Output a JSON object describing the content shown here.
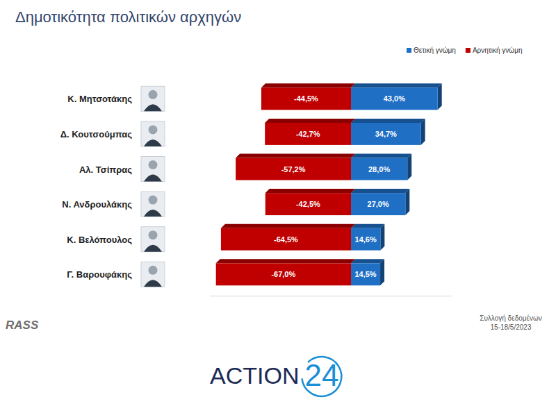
{
  "chart_data": {
    "type": "bar",
    "title": "Δημοτικότητα πολιτικών αρχηγών",
    "orientation": "horizontal",
    "categories": [
      "Κ. Μητσοτάκης",
      "Δ. Κουτσούμπας",
      "Αλ. Τσίπρας",
      "Ν. Ανδρουλάκης",
      "Κ. Βελόπουλος",
      "Γ. Βαρουφάκης"
    ],
    "series": [
      {
        "name": "Θετική γνώμη",
        "color": "#1f6fc5",
        "values": [
          43.0,
          34.7,
          28.0,
          27.0,
          14.6,
          14.5
        ],
        "value_labels": [
          "43,0%",
          "34,7%",
          "28,0%",
          "27,0%",
          "14,6%",
          "14,5%"
        ]
      },
      {
        "name": "Αρνητική γνώμη",
        "color": "#c00000",
        "values": [
          -44.5,
          -42.7,
          -57.2,
          -42.5,
          -64.5,
          -67.0
        ],
        "value_labels": [
          "-44,5%",
          "-42,7%",
          "-57,2%",
          "-42,5%",
          "-64,5%",
          "-67,0%"
        ]
      }
    ],
    "xlim": [
      -70,
      50
    ],
    "xticks": [],
    "tick_labels": false,
    "grid": false,
    "legend": "top-right",
    "data_labels": true,
    "annotations": [
      "RASS",
      "Συλλογή δεδομένων",
      "15-18/5/2023",
      "ACTION",
      "24"
    ]
  }
}
